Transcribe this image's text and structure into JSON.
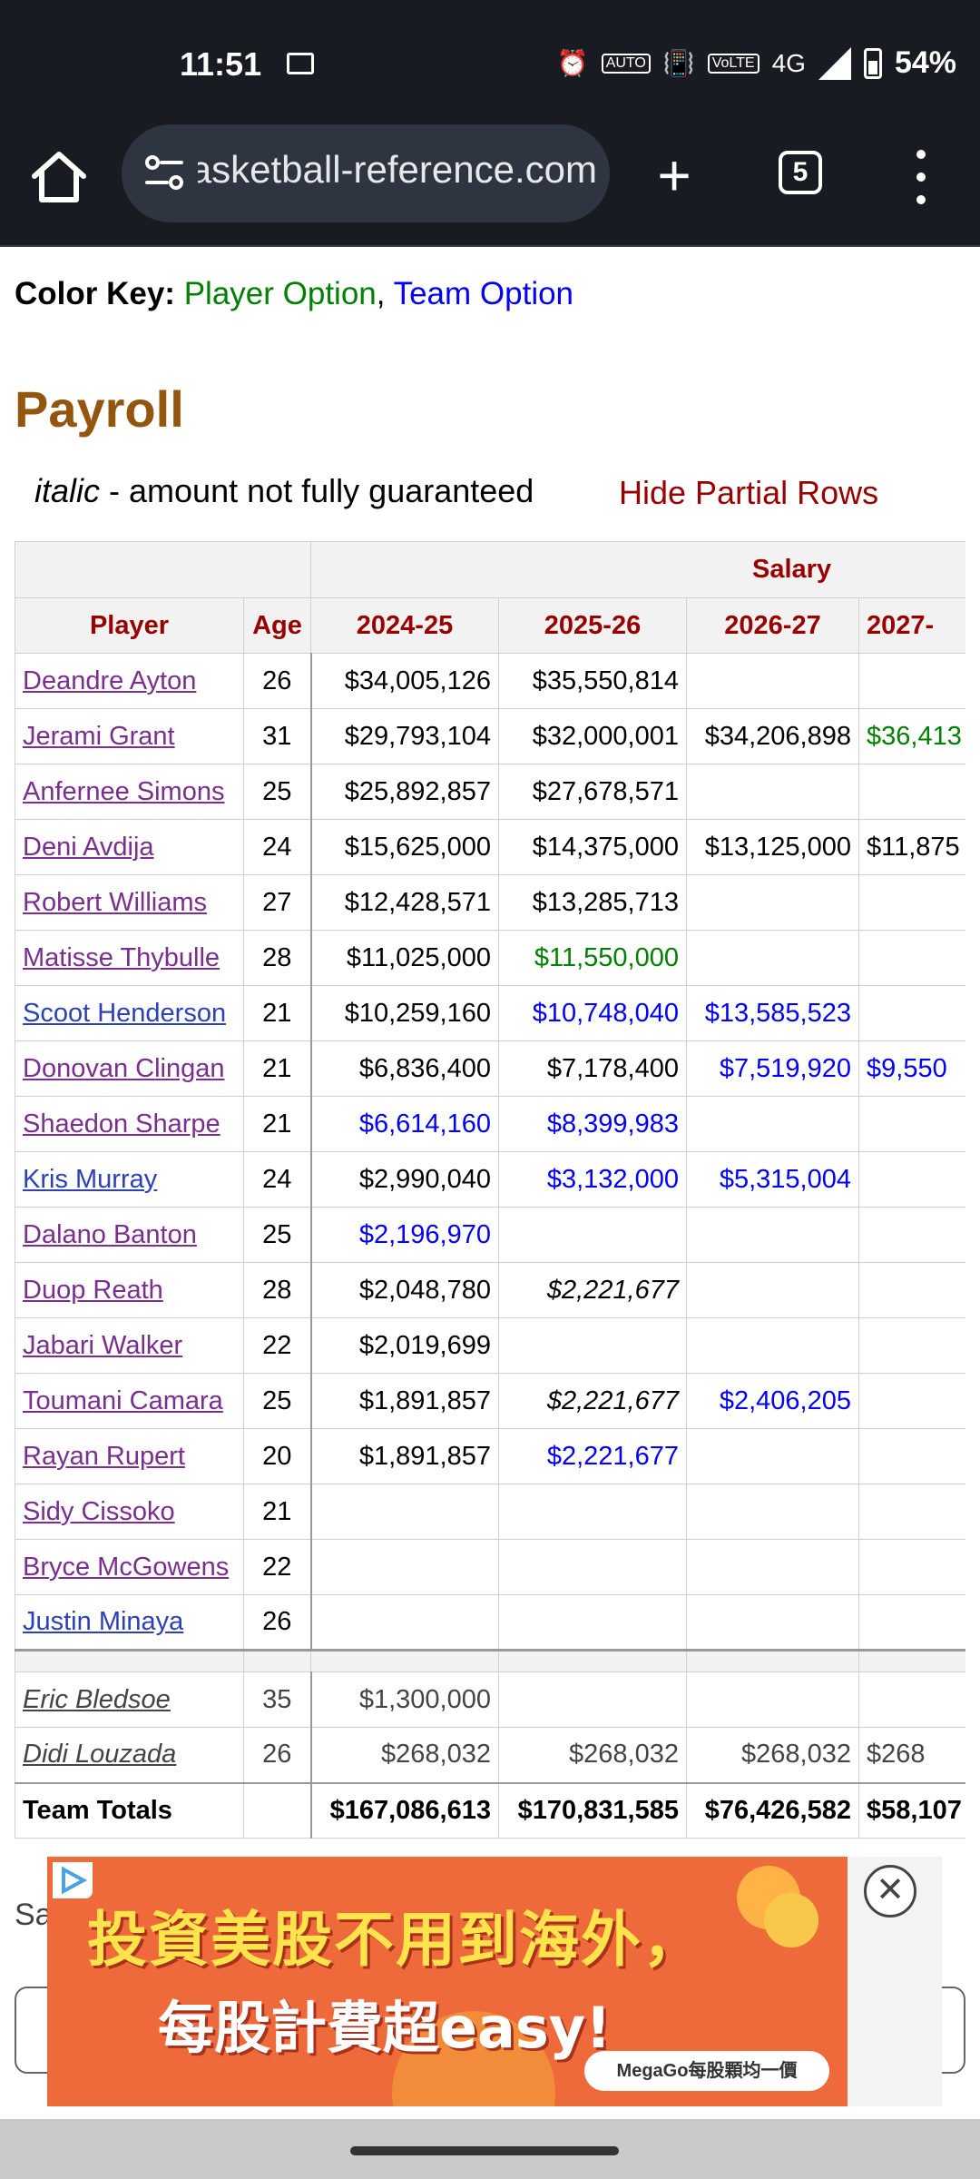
{
  "status_bar": {
    "time": "11:51",
    "battery": "54%",
    "network": "4G",
    "icons": [
      "image-icon",
      "alarm-icon",
      "auto-hz-icon",
      "vibrate-icon",
      "volte-icon",
      "signal-icon",
      "battery-icon"
    ]
  },
  "browser": {
    "url": "basketball-reference.com",
    "tab_count": "5",
    "new_tab_label": "+"
  },
  "color_key": {
    "label": "Color Key:",
    "player_option": "Player Option",
    "separator": ",",
    "team_option": "Team Option"
  },
  "payroll": {
    "title": "Payroll",
    "note_italic": "italic",
    "note_rest": " - amount not fully guaranteed",
    "hide_partial_rows": "Hide Partial Rows",
    "header_group": "Salary",
    "columns": [
      "Player",
      "Age",
      "2024-25",
      "2025-26",
      "2026-27",
      "2027-"
    ],
    "rows": [
      {
        "player": "Deandre Ayton",
        "age": "26",
        "s1": "$34,005,126",
        "s2": "$35,550,814",
        "s3": "",
        "s4": ""
      },
      {
        "player": "Jerami Grant",
        "age": "31",
        "s1": "$29,793,104",
        "s2": "$32,000,001",
        "s3": "$34,206,898",
        "s4": "$36,413"
      },
      {
        "player": "Anfernee Simons",
        "age": "25",
        "s1": "$25,892,857",
        "s2": "$27,678,571",
        "s3": "",
        "s4": ""
      },
      {
        "player": "Deni Avdija",
        "age": "24",
        "s1": "$15,625,000",
        "s2": "$14,375,000",
        "s3": "$13,125,000",
        "s4": "$11,875"
      },
      {
        "player": "Robert Williams",
        "age": "27",
        "s1": "$12,428,571",
        "s2": "$13,285,713",
        "s3": "",
        "s4": ""
      },
      {
        "player": "Matisse Thybulle",
        "age": "28",
        "s1": "$11,025,000",
        "s2": "$11,550,000",
        "s3": "",
        "s4": ""
      },
      {
        "player": "Scoot Henderson",
        "age": "21",
        "s1": "$10,259,160",
        "s2": "$10,748,040",
        "s3": "$13,585,523",
        "s4": ""
      },
      {
        "player": "Donovan Clingan",
        "age": "21",
        "s1": "$6,836,400",
        "s2": "$7,178,400",
        "s3": "$7,519,920",
        "s4": "$9,550"
      },
      {
        "player": "Shaedon Sharpe",
        "age": "21",
        "s1": "$6,614,160",
        "s2": "$8,399,983",
        "s3": "",
        "s4": ""
      },
      {
        "player": "Kris Murray",
        "age": "24",
        "s1": "$2,990,040",
        "s2": "$3,132,000",
        "s3": "$5,315,004",
        "s4": ""
      },
      {
        "player": "Dalano Banton",
        "age": "25",
        "s1": "$2,196,970",
        "s2": "",
        "s3": "",
        "s4": ""
      },
      {
        "player": "Duop Reath",
        "age": "28",
        "s1": "$2,048,780",
        "s2": "$2,221,677",
        "s3": "",
        "s4": ""
      },
      {
        "player": "Jabari Walker",
        "age": "22",
        "s1": "$2,019,699",
        "s2": "",
        "s3": "",
        "s4": ""
      },
      {
        "player": "Toumani Camara",
        "age": "25",
        "s1": "$1,891,857",
        "s2": "$2,221,677",
        "s3": "$2,406,205",
        "s4": ""
      },
      {
        "player": "Rayan Rupert",
        "age": "20",
        "s1": "$1,891,857",
        "s2": "$2,221,677",
        "s3": "",
        "s4": ""
      },
      {
        "player": "Sidy Cissoko",
        "age": "21",
        "s1": "",
        "s2": "",
        "s3": "",
        "s4": ""
      },
      {
        "player": "Bryce McGowens",
        "age": "22",
        "s1": "",
        "s2": "",
        "s3": "",
        "s4": ""
      },
      {
        "player": "Justin Minaya",
        "age": "26",
        "s1": "",
        "s2": "",
        "s3": "",
        "s4": ""
      }
    ],
    "dead_rows": [
      {
        "player": "Eric Bledsoe",
        "age": "35",
        "s1": "$1,300,000",
        "s2": "",
        "s3": "",
        "s4": ""
      },
      {
        "player": "Didi Louzada",
        "age": "26",
        "s1": "$268,032",
        "s2": "$268,032",
        "s3": "$268,032",
        "s4": "$268"
      }
    ],
    "totals": {
      "label": "Team Totals",
      "age": "",
      "s1": "$167,086,613",
      "s2": "$170,831,585",
      "s3": "$76,426,582",
      "s4": "$58,107"
    }
  },
  "below_table_text": "Sa",
  "ad": {
    "line1": "投資美股不用到海外，",
    "line2": "每股計費超easy!",
    "badge": "MegaGo每股顆均一價",
    "close_label": "✕"
  },
  "colors": {
    "player_option": "#008000",
    "team_option": "#0000ff",
    "header_text": "#990000",
    "section_title": "#94560e"
  }
}
